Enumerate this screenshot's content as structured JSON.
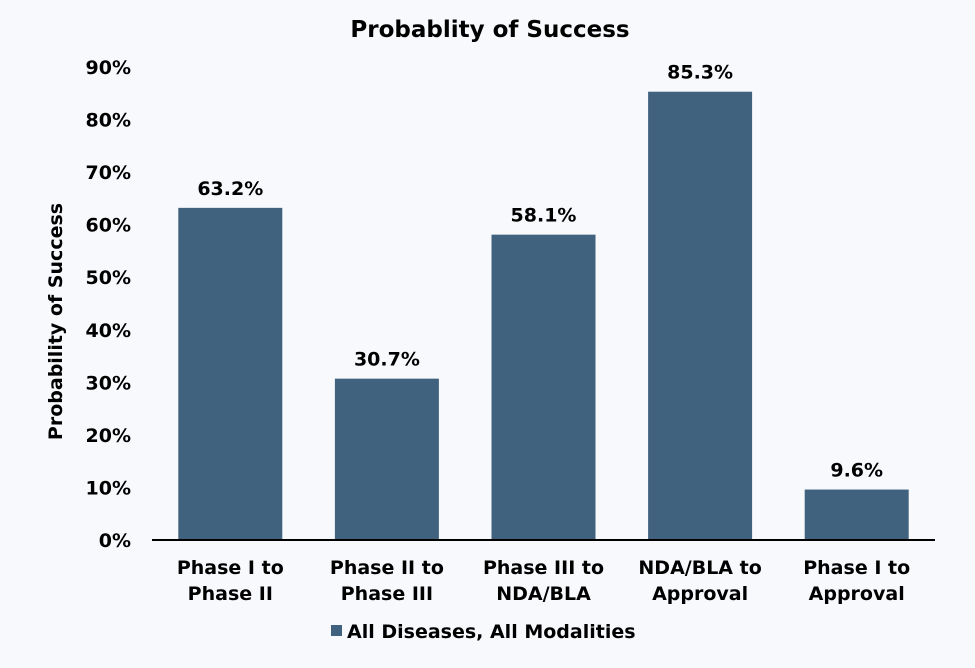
{
  "chart_data": {
    "type": "bar",
    "title": "Probablity of Success",
    "xlabel": "",
    "ylabel": "Probability of Success",
    "ylim": [
      0,
      90
    ],
    "yticks": [
      0,
      10,
      20,
      30,
      40,
      50,
      60,
      70,
      80,
      90
    ],
    "ytick_labels": [
      "0%",
      "10%",
      "20%",
      "30%",
      "40%",
      "50%",
      "60%",
      "70%",
      "80%",
      "90%"
    ],
    "grid": false,
    "categories": [
      [
        "Phase I to",
        "Phase II"
      ],
      [
        "Phase II to",
        "Phase III"
      ],
      [
        "Phase III to",
        "NDA/BLA"
      ],
      [
        "NDA/BLA to",
        "Approval"
      ],
      [
        "Phase I to",
        "Approval"
      ]
    ],
    "series": [
      {
        "name": "All Diseases, All Modalities",
        "values": [
          63.2,
          30.7,
          58.1,
          85.3,
          9.6
        ],
        "labels": [
          "63.2%",
          "30.7%",
          "58.1%",
          "85.3%",
          "9.6%"
        ],
        "color": "#41627f"
      }
    ],
    "legend_position": "bottom-center"
  }
}
